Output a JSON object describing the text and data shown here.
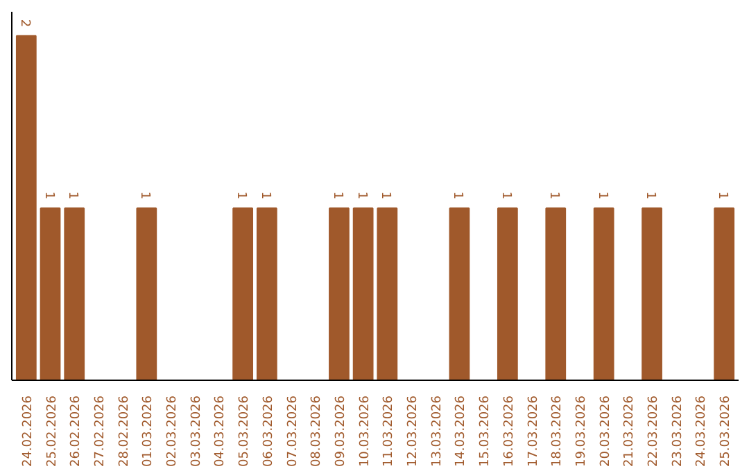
{
  "chart_data": {
    "type": "bar",
    "categories": [
      "24.02.2026",
      "25.02.2026",
      "26.02.2026",
      "27.02.2026",
      "28.02.2026",
      "01.03.2026",
      "02.03.2026",
      "03.03.2026",
      "04.03.2026",
      "05.03.2026",
      "06.03.2026",
      "07.03.2026",
      "08.03.2026",
      "09.03.2026",
      "10.03.2026",
      "11.03.2026",
      "12.03.2026",
      "13.03.2026",
      "14.03.2026",
      "15.03.2026",
      "16.03.2026",
      "17.03.2026",
      "18.03.2026",
      "19.03.2026",
      "20.03.2026",
      "21.03.2026",
      "22.03.2026",
      "23.03.2026",
      "24.03.2026",
      "25.03.2026"
    ],
    "values": [
      2,
      1,
      1,
      0,
      0,
      1,
      0,
      0,
      0,
      1,
      1,
      0,
      0,
      1,
      1,
      1,
      0,
      0,
      1,
      0,
      1,
      0,
      1,
      0,
      1,
      0,
      1,
      0,
      0,
      1
    ],
    "value_labels": [
      "2",
      "1",
      "1",
      null,
      null,
      "1",
      null,
      null,
      null,
      "1",
      "1",
      null,
      null,
      "1",
      "1",
      "1",
      null,
      null,
      "1",
      null,
      "1",
      null,
      "1",
      null,
      "1",
      null,
      "1",
      null,
      null,
      "1"
    ],
    "color": "#a0592b",
    "tick_labels": "x",
    "grid": false
  }
}
